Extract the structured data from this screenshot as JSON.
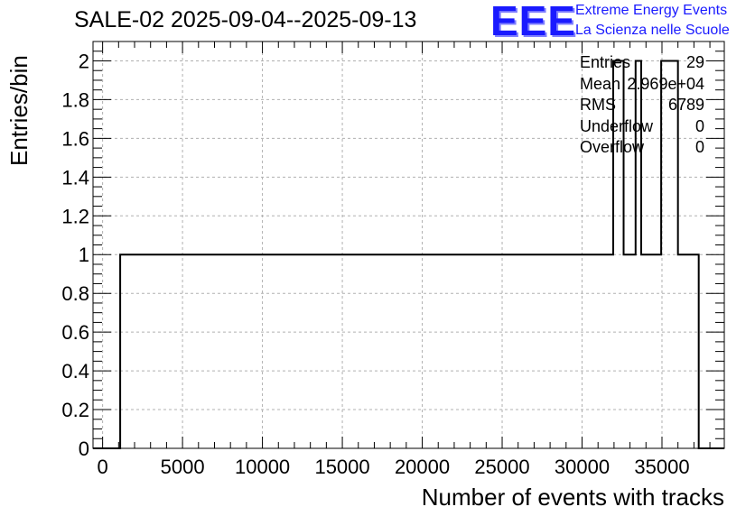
{
  "header": {
    "title": "SALE-02 2025-09-04--2025-09-13",
    "logo_text": "EEE",
    "logo_line1": "Extreme Energy Events",
    "logo_line2": "La Scienza nelle Scuole"
  },
  "stats": [
    {
      "key": "Entries",
      "value": "29"
    },
    {
      "key": "Mean",
      "value": "2.969e+04"
    },
    {
      "key": "RMS",
      "value": "6789"
    },
    {
      "key": "Underflow",
      "value": "0"
    },
    {
      "key": "Overflow",
      "value": "0"
    }
  ],
  "chart_data": {
    "type": "bar",
    "style": "step-histogram",
    "title": "SALE-02 2025-09-04--2025-09-13",
    "xlabel": "Number of events with tracks",
    "ylabel": "Entries/bin",
    "xlim": [
      -600,
      38900
    ],
    "ylim": [
      0,
      2.1
    ],
    "grid": true,
    "bin_width": 350,
    "xticks": [
      "0",
      "5000",
      "10000",
      "15000",
      "20000",
      "25000",
      "30000",
      "35000"
    ],
    "yticks": [
      "0",
      "0.2",
      "0.4",
      "0.6",
      "0.8",
      "1",
      "1.2",
      "1.4",
      "1.6",
      "1.8",
      "2"
    ],
    "bins": [
      {
        "x0": 1100,
        "x1": 1450,
        "y": 1
      },
      {
        "x0": 21150,
        "x1": 21500,
        "y": 1
      },
      {
        "x0": 22700,
        "x1": 23050,
        "y": 1
      },
      {
        "x0": 23500,
        "x1": 23850,
        "y": 1
      },
      {
        "x0": 24850,
        "x1": 25200,
        "y": 1
      },
      {
        "x0": 25650,
        "x1": 26000,
        "y": 1
      },
      {
        "x0": 26400,
        "x1": 27600,
        "y": 1
      },
      {
        "x0": 27950,
        "x1": 28300,
        "y": 1
      },
      {
        "x0": 29150,
        "x1": 30250,
        "y": 1
      },
      {
        "x0": 30550,
        "x1": 31950,
        "y": 1
      },
      {
        "x0": 31950,
        "x1": 32300,
        "y": 2
      },
      {
        "x0": 32600,
        "x1": 32950,
        "y": 1
      },
      {
        "x0": 33350,
        "x1": 33700,
        "y": 2
      },
      {
        "x0": 33700,
        "x1": 34000,
        "y": 1
      },
      {
        "x0": 34300,
        "x1": 34600,
        "y": 1
      },
      {
        "x0": 34950,
        "x1": 35350,
        "y": 2
      },
      {
        "x0": 35650,
        "x1": 36000,
        "y": 2
      },
      {
        "x0": 36000,
        "x1": 36300,
        "y": 1
      },
      {
        "x0": 36950,
        "x1": 37300,
        "y": 1
      }
    ]
  }
}
